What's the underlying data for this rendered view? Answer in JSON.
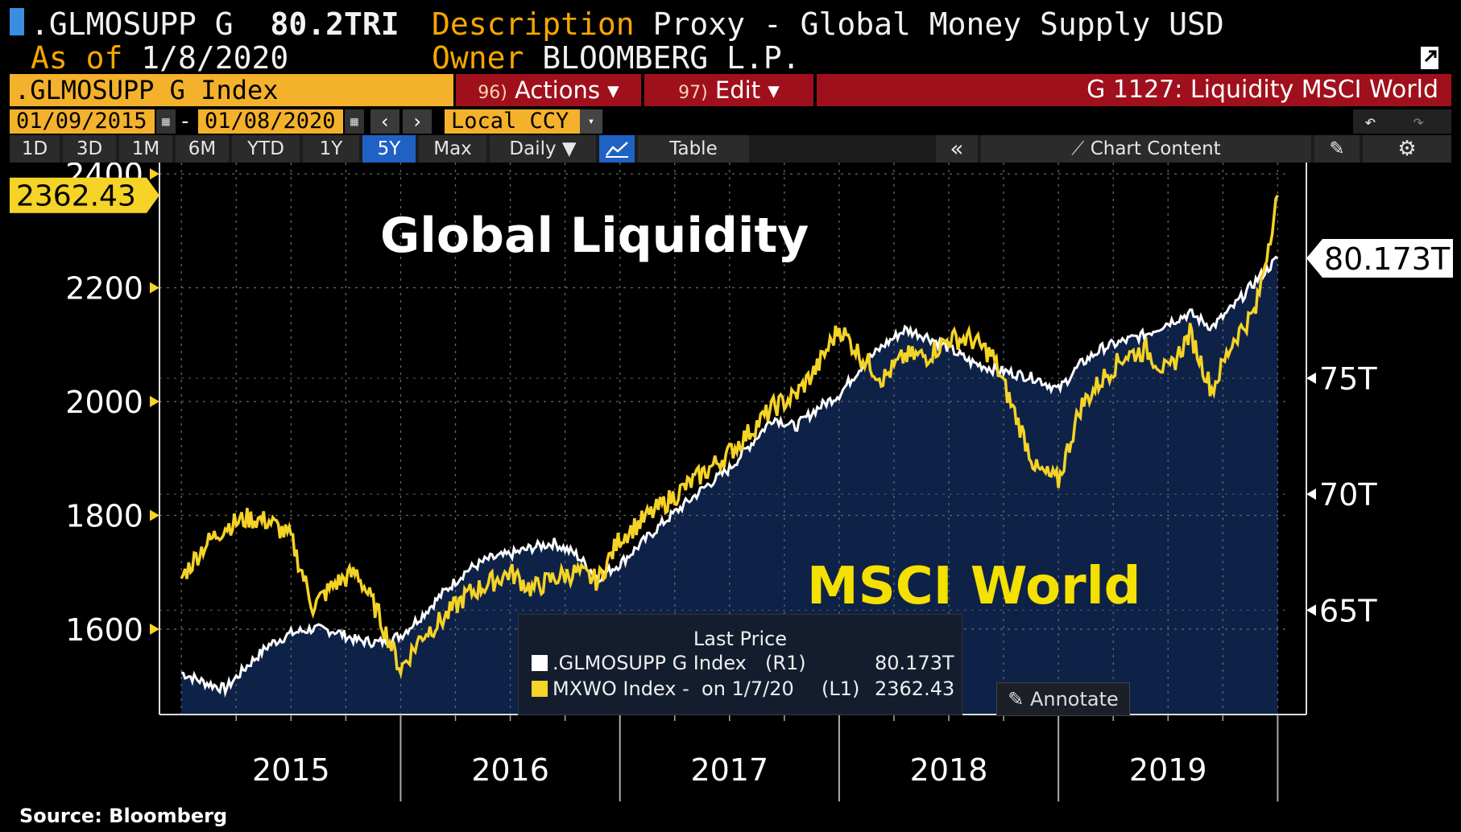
{
  "header": {
    "ticker": ".GLMOSUPP G",
    "value": "80.2TRI",
    "description_label": "Description",
    "description": "Proxy - Global Money Supply USD",
    "asof_label": "As of",
    "asof": "1/8/2020",
    "owner_label": "Owner",
    "owner": "BLOOMBERG L.P."
  },
  "toolbar": {
    "security": ".GLMOSUPP G Index",
    "actions_num": "96)",
    "actions": "Actions ▾",
    "edit_num": "97)",
    "edit": "Edit ▾",
    "page_title": "G 1127: Liquidity MSCI World",
    "date_start": "01/09/2015",
    "date_sep": "-",
    "date_end": "01/08/2020",
    "currency": "Local CCY",
    "timeframes": [
      "1D",
      "3D",
      "1M",
      "6M",
      "YTD",
      "1Y",
      "5Y",
      "Max"
    ],
    "active_timeframe": "5Y",
    "frequency": "Daily ▼",
    "table_label": "Table",
    "collapse": "«",
    "chart_content": "Chart Content"
  },
  "chart_data": {
    "type": "line",
    "annotations": [
      "Global Liquidity",
      "MSCI World"
    ],
    "x_ticks": [
      "2015",
      "2016",
      "2017",
      "2018",
      "2019"
    ],
    "left_axis": {
      "ticks": [
        1600,
        1800,
        2000,
        2200,
        2400
      ],
      "ylim": [
        1450,
        2420
      ],
      "last_label": "2362.43"
    },
    "right_axis": {
      "ticks": [
        "65T",
        "70T",
        "75T"
      ],
      "tick_values": [
        65,
        70,
        75
      ],
      "ylim": [
        60.5,
        84.3
      ],
      "last_label": "80.173T"
    },
    "series": [
      {
        "name": ".GLMOSUPP G Index",
        "axis": "R1",
        "color": "#ffffff",
        "x": [
          2015.0,
          2015.1,
          2015.2,
          2015.3,
          2015.4,
          2015.5,
          2015.6,
          2015.7,
          2015.8,
          2015.9,
          2016.0,
          2016.1,
          2016.2,
          2016.3,
          2016.4,
          2016.5,
          2016.6,
          2016.7,
          2016.8,
          2016.9,
          2017.0,
          2017.1,
          2017.2,
          2017.3,
          2017.4,
          2017.5,
          2017.6,
          2017.7,
          2017.8,
          2017.9,
          2018.0,
          2018.1,
          2018.2,
          2018.3,
          2018.4,
          2018.5,
          2018.6,
          2018.7,
          2018.8,
          2018.9,
          2019.0,
          2019.1,
          2019.2,
          2019.3,
          2019.4,
          2019.5,
          2019.6,
          2019.7,
          2019.8,
          2019.9,
          2020.0
        ],
        "values": [
          62.3,
          61.9,
          61.6,
          62.6,
          63.5,
          64.0,
          64.2,
          64.1,
          63.7,
          63.6,
          63.9,
          64.8,
          65.8,
          66.7,
          67.2,
          67.4,
          67.7,
          67.9,
          67.4,
          66.4,
          67.0,
          67.9,
          68.8,
          69.6,
          70.4,
          71.1,
          72.2,
          73.3,
          72.9,
          73.7,
          74.3,
          75.5,
          76.4,
          77.1,
          76.8,
          76.3,
          75.7,
          75.4,
          75.2,
          75.0,
          74.5,
          75.6,
          76.3,
          76.6,
          76.9,
          77.4,
          77.8,
          77.2,
          78.1,
          79.2,
          80.17
        ]
      },
      {
        "name": "MXWO Index - on 1/7/20",
        "axis": "L1",
        "color": "#f5d327",
        "x": [
          2015.0,
          2015.1,
          2015.2,
          2015.3,
          2015.4,
          2015.5,
          2015.6,
          2015.7,
          2015.8,
          2015.9,
          2016.0,
          2016.1,
          2016.2,
          2016.3,
          2016.4,
          2016.5,
          2016.6,
          2016.7,
          2016.8,
          2016.9,
          2017.0,
          2017.1,
          2017.2,
          2017.3,
          2017.4,
          2017.5,
          2017.6,
          2017.7,
          2017.8,
          2017.9,
          2018.0,
          2018.1,
          2018.2,
          2018.3,
          2018.4,
          2018.5,
          2018.6,
          2018.7,
          2018.8,
          2018.9,
          2019.0,
          2019.1,
          2019.2,
          2019.3,
          2019.4,
          2019.5,
          2019.6,
          2019.7,
          2019.8,
          2019.9,
          2020.0
        ],
        "values": [
          1690,
          1745,
          1780,
          1795,
          1790,
          1760,
          1640,
          1680,
          1700,
          1625,
          1530,
          1590,
          1620,
          1660,
          1680,
          1700,
          1670,
          1690,
          1700,
          1685,
          1760,
          1790,
          1820,
          1850,
          1880,
          1910,
          1950,
          1990,
          2010,
          2060,
          2130,
          2080,
          2040,
          2080,
          2080,
          2110,
          2110,
          2080,
          1980,
          1880,
          1860,
          1990,
          2040,
          2080,
          2090,
          2050,
          2120,
          2020,
          2110,
          2160,
          2362.43
        ]
      }
    ]
  },
  "legend": {
    "title": "Last Price",
    "row1_name": ".GLMOSUPP G Index",
    "row1_axis": "(R1)",
    "row1_value": "80.173T",
    "row2_name": "MXWO Index -  on 1/7/20",
    "row2_axis": "(L1)",
    "row2_value": "2362.43"
  },
  "annotate_label": "Annotate",
  "source": "Source: Bloomberg",
  "colors": {
    "white_series": "#ffffff",
    "yellow_series": "#f5d327",
    "area_fill": "#0e2248",
    "header_orange": "#f7a600",
    "bar_red": "#a0101c"
  }
}
